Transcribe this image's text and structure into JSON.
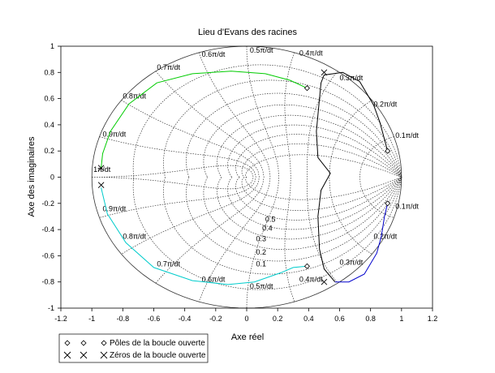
{
  "chart_data": {
    "type": "line",
    "title": "Lieu d'Evans des racines",
    "xlabel": "Axe réel",
    "ylabel": "Axe des imaginaires",
    "xlim": [
      -1.2,
      1.2
    ],
    "ylim": [
      -1,
      1
    ],
    "xticks": [
      "-1.2",
      "-1",
      "-0.8",
      "-0.6",
      "-0.4",
      "-0.2",
      "0",
      "0.2",
      "0.4",
      "0.6",
      "0.8",
      "1",
      "1.2"
    ],
    "yticks": [
      "-1",
      "-0.8",
      "-0.6",
      "-0.4",
      "-0.2",
      "0",
      "0.2",
      "0.4",
      "0.6",
      "0.8",
      "1"
    ],
    "grid": "z-plane damping / natural frequency grid",
    "damping_labels": [
      "0.1",
      "0.2",
      "0.3",
      "0.4",
      "0.5"
    ],
    "frequency_labels": [
      "0.1π/dt",
      "0.2π/dt",
      "0.3π/dt",
      "0.4π/dt",
      "0.5π/dt",
      "0.6π/dt",
      "0.7π/dt",
      "0.8π/dt",
      "0.9π/dt",
      "1π/dt"
    ],
    "series": [
      {
        "color": "#00cc00",
        "points": [
          [
            0.39,
            0.68
          ],
          [
            0.28,
            0.74
          ],
          [
            0.12,
            0.79
          ],
          [
            -0.1,
            0.81
          ],
          [
            -0.35,
            0.79
          ],
          [
            -0.58,
            0.72
          ],
          [
            -0.76,
            0.56
          ],
          [
            -0.88,
            0.35
          ],
          [
            -0.93,
            0.18
          ],
          [
            -0.94,
            0.07
          ]
        ]
      },
      {
        "color": "#00cccc",
        "points": [
          [
            0.39,
            -0.68
          ],
          [
            0.3,
            -0.69
          ],
          [
            0.22,
            -0.73
          ],
          [
            0.05,
            -0.8
          ],
          [
            -0.12,
            -0.82
          ],
          [
            -0.35,
            -0.79
          ],
          [
            -0.6,
            -0.69
          ],
          [
            -0.78,
            -0.5
          ],
          [
            -0.9,
            -0.28
          ],
          [
            -0.94,
            -0.08
          ]
        ]
      },
      {
        "color": "#000000",
        "points": [
          [
            0.91,
            0.2
          ],
          [
            0.86,
            0.42
          ],
          [
            0.82,
            0.55
          ],
          [
            0.73,
            0.73
          ],
          [
            0.62,
            0.8
          ],
          [
            0.5,
            0.78
          ],
          [
            0.48,
            0.72
          ],
          [
            0.47,
            0.6
          ],
          [
            0.45,
            0.35
          ],
          [
            0.46,
            0.15
          ],
          [
            0.54,
            0.03
          ],
          [
            0.48,
            -0.1
          ],
          [
            0.46,
            -0.3
          ],
          [
            0.47,
            -0.55
          ],
          [
            0.5,
            -0.7
          ],
          [
            0.57,
            -0.8
          ]
        ]
      },
      {
        "color": "#0000cc",
        "points": [
          [
            0.91,
            -0.2
          ],
          [
            0.89,
            -0.3
          ],
          [
            0.87,
            -0.45
          ],
          [
            0.84,
            -0.58
          ],
          [
            0.76,
            -0.74
          ],
          [
            0.66,
            -0.8
          ],
          [
            0.57,
            -0.8
          ]
        ]
      }
    ],
    "poles": [
      [
        0.39,
        0.68
      ],
      [
        0.39,
        -0.68
      ],
      [
        0.91,
        0.2
      ],
      [
        0.91,
        -0.2
      ]
    ],
    "zeros": [
      [
        -0.94,
        0.07
      ],
      [
        -0.94,
        -0.06
      ],
      [
        0.5,
        0.8
      ],
      [
        0.5,
        -0.8
      ]
    ],
    "legend": [
      {
        "marker": "diamond",
        "label": "Pôles de la boucle ouverte"
      },
      {
        "marker": "cross",
        "label": "Zéros de la boucle ouverte"
      }
    ],
    "legend_position": "bottom-left"
  }
}
